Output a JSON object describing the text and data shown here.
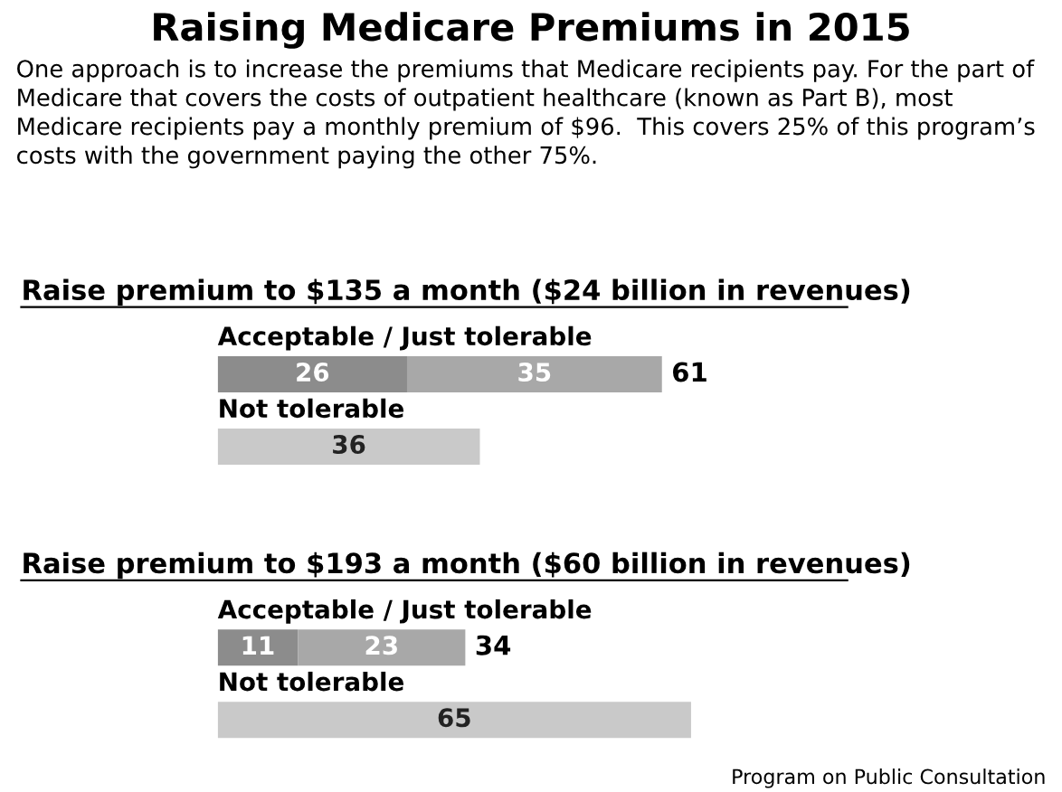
{
  "chart_data": [
    {
      "type": "other",
      "title": "Raising Medicare Premiums in 2015",
      "subtitle": "One approach is to increase the premiums that Medicare recipients pay. For the part of Medicare that covers the costs of outpatient healthcare (known as Part B), most Medicare recipients pay a monthly premium of $96.  This covers 25% of this program’s costs with the government paying the other 75%."
    },
    {
      "type": "bar",
      "orientation": "horizontal",
      "stacked": true,
      "title": "Raise premium to $135 a month ($24 billion in revenues)",
      "categories": [
        "Acceptable / Just tolerable",
        "Not tolerable"
      ],
      "series": [
        {
          "color": "#8c8c8c",
          "values": [
            26,
            null
          ]
        },
        {
          "color": "#a8a8a8",
          "values": [
            35,
            null
          ]
        },
        {
          "color": "#c9c9c9",
          "values": [
            null,
            36
          ]
        }
      ],
      "data_labels": true,
      "totals": [
        "61",
        null
      ]
    },
    {
      "type": "bar",
      "orientation": "horizontal",
      "stacked": true,
      "title": "Raise premium to $193 a month ($60 billion in revenues)",
      "categories": [
        "Acceptable / Just tolerable",
        "Not tolerable"
      ],
      "series": [
        {
          "color": "#8c8c8c",
          "values": [
            11,
            null
          ]
        },
        {
          "color": "#a8a8a8",
          "values": [
            23,
            null
          ]
        },
        {
          "color": "#c9c9c9",
          "values": [
            null,
            65
          ]
        }
      ],
      "data_labels": true,
      "totals": [
        "34",
        null
      ],
      "annotations": [
        "Program on Public Consultation"
      ]
    }
  ]
}
